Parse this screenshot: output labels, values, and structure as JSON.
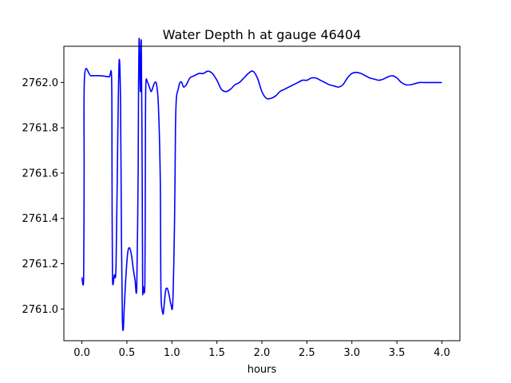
{
  "chart_data": {
    "type": "line",
    "title": "Water Depth h at gauge 46404",
    "xlabel": "hours",
    "ylabel": "",
    "xlim": [
      -0.2,
      4.2
    ],
    "ylim": [
      2760.86,
      2762.16
    ],
    "xticks": [
      0.0,
      0.5,
      1.0,
      1.5,
      2.0,
      2.5,
      3.0,
      3.5,
      4.0
    ],
    "xtick_labels": [
      "0.0",
      "0.5",
      "1.0",
      "1.5",
      "2.0",
      "2.5",
      "3.0",
      "3.5",
      "4.0"
    ],
    "yticks": [
      2761.0,
      2761.2,
      2761.4,
      2761.6,
      2761.8,
      2762.0
    ],
    "ytick_labels": [
      "2761.0",
      "2761.2",
      "2761.4",
      "2761.6",
      "2761.8",
      "2762.0"
    ],
    "grid": false,
    "series": [
      {
        "color": "#0000ff",
        "x": [
          0.0,
          0.02,
          0.025,
          0.03,
          0.1,
          0.2,
          0.3,
          0.33,
          0.335,
          0.34,
          0.36,
          0.38,
          0.4,
          0.415,
          0.43,
          0.44,
          0.45,
          0.46,
          0.47,
          0.49,
          0.51,
          0.53,
          0.55,
          0.57,
          0.59,
          0.61,
          0.625,
          0.63,
          0.635,
          0.64,
          0.65,
          0.66,
          0.67,
          0.675,
          0.68,
          0.7,
          0.705,
          0.71,
          0.73,
          0.75,
          0.77,
          0.79,
          0.81,
          0.83,
          0.85,
          0.87,
          0.875,
          0.88,
          0.9,
          0.91,
          0.93,
          0.95,
          0.97,
          0.99,
          1.01,
          1.03,
          1.04,
          1.05,
          1.07,
          1.09,
          1.11,
          1.13,
          1.16,
          1.2,
          1.25,
          1.3,
          1.35,
          1.4,
          1.45,
          1.5,
          1.55,
          1.6,
          1.65,
          1.7,
          1.75,
          1.8,
          1.85,
          1.9,
          1.95,
          2.0,
          2.05,
          2.1,
          2.15,
          2.2,
          2.25,
          2.3,
          2.35,
          2.4,
          2.45,
          2.5,
          2.55,
          2.6,
          2.65,
          2.7,
          2.75,
          2.8,
          2.85,
          2.9,
          2.95,
          3.0,
          3.05,
          3.1,
          3.15,
          3.2,
          3.25,
          3.3,
          3.35,
          3.4,
          3.45,
          3.5,
          3.55,
          3.6,
          3.65,
          3.7,
          3.75,
          3.8,
          3.85,
          3.9,
          3.95,
          4.0
        ],
        "y": [
          2761.14,
          2761.14,
          2761.6,
          2762.03,
          2762.03,
          2762.03,
          2762.025,
          2762.02,
          2761.6,
          2761.14,
          2761.15,
          2761.2,
          2761.8,
          2762.1,
          2761.9,
          2761.3,
          2760.96,
          2760.91,
          2761.0,
          2761.15,
          2761.25,
          2761.27,
          2761.24,
          2761.18,
          2761.13,
          2761.1,
          2761.6,
          2762.0,
          2762.18,
          2762.16,
          2761.96,
          2762.18,
          2761.6,
          2761.1,
          2761.1,
          2761.11,
          2761.6,
          2761.98,
          2762.0,
          2761.98,
          2761.96,
          2761.98,
          2762.0,
          2761.99,
          2761.9,
          2761.6,
          2761.3,
          2761.05,
          2760.98,
          2761.0,
          2761.08,
          2761.09,
          2761.06,
          2761.02,
          2761.03,
          2761.4,
          2761.8,
          2761.93,
          2761.97,
          2762.0,
          2762.0,
          2761.98,
          2761.99,
          2762.02,
          2762.03,
          2762.04,
          2762.04,
          2762.05,
          2762.04,
          2762.01,
          2761.97,
          2761.96,
          2761.97,
          2761.99,
          2762.0,
          2762.02,
          2762.04,
          2762.05,
          2762.02,
          2761.96,
          2761.93,
          2761.93,
          2761.94,
          2761.96,
          2761.97,
          2761.98,
          2761.99,
          2762.0,
          2762.01,
          2762.01,
          2762.02,
          2762.02,
          2762.01,
          2762.0,
          2761.99,
          2761.985,
          2761.98,
          2761.99,
          2762.02,
          2762.04,
          2762.045,
          2762.04,
          2762.03,
          2762.02,
          2762.015,
          2762.01,
          2762.015,
          2762.025,
          2762.03,
          2762.02,
          2762.0,
          2761.99,
          2761.99,
          2761.995,
          2762.0,
          2762.0,
          2762.0,
          2762.0,
          2762.0,
          2762.0
        ]
      }
    ]
  }
}
